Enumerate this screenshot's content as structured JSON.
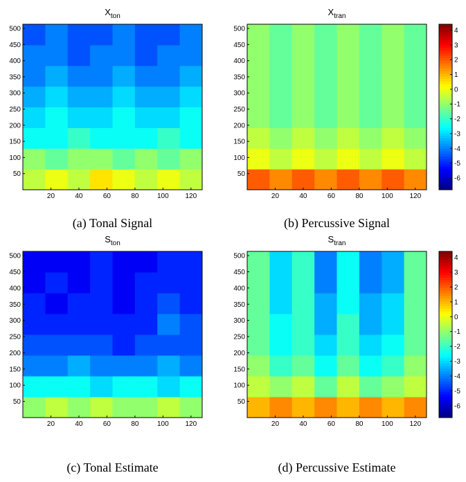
{
  "chart_data": [
    {
      "type": "heatmap",
      "title": "X",
      "title_sub": "ton",
      "caption": "(a) Tonal Signal",
      "xlim": [
        0,
        128
      ],
      "ylim": [
        0,
        513
      ],
      "xticks": [
        20,
        40,
        60,
        80,
        100,
        120
      ],
      "yticks": [
        50,
        100,
        150,
        200,
        250,
        300,
        350,
        400,
        450,
        500
      ],
      "clim": [
        -6.8,
        4.4
      ],
      "colormap": "jet",
      "colorbar": false,
      "z": [
        [
          -0.5,
          0,
          -0.5,
          0.5,
          0,
          -0.5,
          0,
          -0.5
        ],
        [
          -1,
          -1.5,
          -1,
          -1,
          -1.5,
          -1,
          -1.5,
          -1
        ],
        [
          -2.5,
          -2.5,
          -2,
          -2.5,
          -2.5,
          -2.5,
          -2,
          -2.5
        ],
        [
          -3,
          -2.5,
          -3,
          -3,
          -2.5,
          -3,
          -3,
          -2.5
        ],
        [
          -3.5,
          -3,
          -3.5,
          -3.5,
          -3,
          -3.5,
          -3.5,
          -3
        ],
        [
          -4,
          -3.5,
          -4,
          -4,
          -3.5,
          -4,
          -4,
          -3.5
        ],
        [
          -4,
          -4,
          -4.5,
          -4,
          -4,
          -4.5,
          -4,
          -4
        ],
        [
          -4.5,
          -4,
          -4.5,
          -4.5,
          -4,
          -4.5,
          -4.5,
          -4
        ]
      ]
    },
    {
      "type": "heatmap",
      "title": "X",
      "title_sub": "tran",
      "caption": "(b) Percussive Signal",
      "xlim": [
        0,
        128
      ],
      "ylim": [
        0,
        513
      ],
      "xticks": [
        20,
        40,
        60,
        80,
        100,
        120
      ],
      "yticks": [
        50,
        100,
        150,
        200,
        250,
        300,
        350,
        400,
        450,
        500
      ],
      "clim": [
        -6.8,
        4.4
      ],
      "colormap": "jet",
      "colorbar": true,
      "cticks": [
        -6,
        -5,
        -4,
        -3,
        -2,
        -1,
        0,
        1,
        2,
        3,
        4
      ],
      "z": [
        [
          2,
          1.5,
          2,
          1.5,
          2,
          1.5,
          2,
          1.5
        ],
        [
          0,
          -0.5,
          0,
          -0.5,
          0,
          -0.5,
          0,
          -0.5
        ],
        [
          -0.5,
          -1,
          -0.5,
          -1,
          -0.5,
          -1,
          -0.5,
          -1
        ],
        [
          -1,
          -1.5,
          -1,
          -1.5,
          -1,
          -1.5,
          -1,
          -1.5
        ],
        [
          -1,
          -1.5,
          -1,
          -1.5,
          -1,
          -1.5,
          -1,
          -1.5
        ],
        [
          -1,
          -1.5,
          -1,
          -1.5,
          -1,
          -1.5,
          -1,
          -1.5
        ],
        [
          -1,
          -1.5,
          -1,
          -1.5,
          -1,
          -1.5,
          -1,
          -1.5
        ],
        [
          -1,
          -1.5,
          -1,
          -1.5,
          -1,
          -1.5,
          -1,
          -1.5
        ]
      ]
    },
    {
      "type": "heatmap",
      "title": "S",
      "title_sub": "ton",
      "caption": "(c) Tonal Estimate",
      "xlim": [
        0,
        128
      ],
      "ylim": [
        0,
        513
      ],
      "xticks": [
        20,
        40,
        60,
        80,
        100,
        120
      ],
      "yticks": [
        50,
        100,
        150,
        200,
        250,
        300,
        350,
        400,
        450,
        500
      ],
      "clim": [
        -6.8,
        4.4
      ],
      "colormap": "jet",
      "colorbar": false,
      "z": [
        [
          -1,
          -0.5,
          -1,
          -0.5,
          -1,
          -1,
          -0.5,
          -1
        ],
        [
          -2.5,
          -2.5,
          -2.5,
          -3,
          -2.5,
          -2.5,
          -3,
          -2.5
        ],
        [
          -4,
          -4,
          -3.5,
          -4,
          -4,
          -4,
          -3.5,
          -4
        ],
        [
          -4.5,
          -4.5,
          -4.5,
          -4.5,
          -5,
          -4.5,
          -4.5,
          -4.5
        ],
        [
          -5,
          -5,
          -5,
          -5,
          -5,
          -5,
          -4,
          -4.5
        ],
        [
          -5,
          -5.5,
          -5,
          -5,
          -5.5,
          -5,
          -4.5,
          -5
        ],
        [
          -5.5,
          -5,
          -5.5,
          -5,
          -5.5,
          -5,
          -5,
          -5
        ],
        [
          -5.5,
          -5.5,
          -5.5,
          -5,
          -5.5,
          -5.5,
          -5,
          -5
        ]
      ]
    },
    {
      "type": "heatmap",
      "title": "S",
      "title_sub": "tran",
      "caption": "(d) Percussive Estimate",
      "xlim": [
        0,
        128
      ],
      "ylim": [
        0,
        513
      ],
      "xticks": [
        20,
        40,
        60,
        80,
        100,
        120
      ],
      "yticks": [
        50,
        100,
        150,
        200,
        250,
        300,
        350,
        400,
        450,
        500
      ],
      "clim": [
        -6.8,
        4.4
      ],
      "colormap": "jet",
      "colorbar": true,
      "cticks": [
        -6,
        -5,
        -4,
        -3,
        -2,
        -1,
        0,
        1,
        2,
        3,
        4
      ],
      "z": [
        [
          1,
          1.5,
          1,
          1.5,
          1,
          1.5,
          1,
          1.5
        ],
        [
          -0.5,
          -1,
          -0.5,
          -1.5,
          -0.5,
          -1.5,
          -1,
          -0.5
        ],
        [
          -1,
          -2,
          -1.5,
          -2.5,
          -1.5,
          -2.5,
          -2,
          -1
        ],
        [
          -1.5,
          -2.5,
          -2,
          -3,
          -2,
          -3,
          -2.5,
          -1.5
        ],
        [
          -1.5,
          -2.5,
          -2,
          -3.5,
          -2,
          -3.5,
          -3,
          -1.5
        ],
        [
          -1.5,
          -3,
          -2,
          -3.5,
          -2.5,
          -3.5,
          -3,
          -1.5
        ],
        [
          -1.5,
          -3,
          -2,
          -4,
          -2.5,
          -4,
          -3.5,
          -1.5
        ],
        [
          -1.5,
          -3,
          -2,
          -4,
          -2.5,
          -4,
          -3.5,
          -1.5
        ]
      ]
    }
  ]
}
